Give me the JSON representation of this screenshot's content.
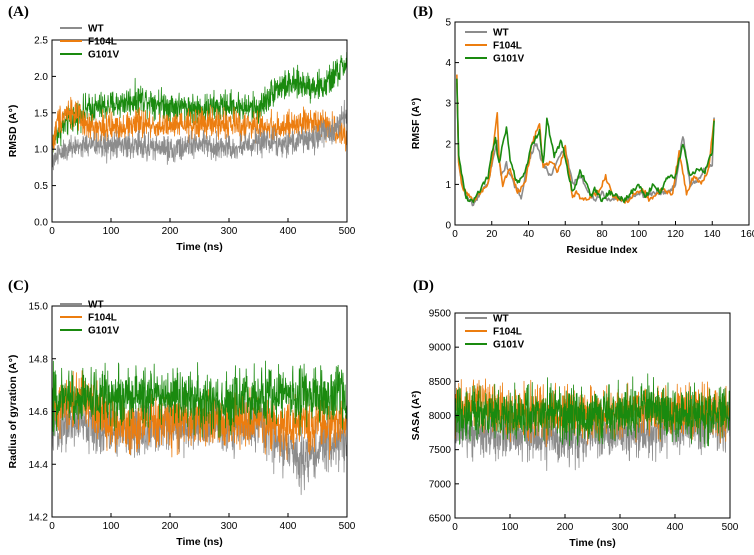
{
  "colors": {
    "WT": "#8c8c8c",
    "F104L": "#ec7d0f",
    "G101V": "#1a8a0f"
  },
  "chart_data": [
    {
      "panel": "(A)",
      "type": "line",
      "xlabel": "Time (ns)",
      "ylabel": "RMSD (A°)",
      "xlim": [
        0,
        500
      ],
      "ylim": [
        0.0,
        2.5
      ],
      "xticks": [
        0,
        100,
        200,
        300,
        400,
        500
      ],
      "yticks": [
        0.0,
        0.5,
        1.0,
        1.5,
        2.0,
        2.5
      ],
      "ytick_decimals": 1,
      "legend": "top-left",
      "legend_order": [
        "WT",
        "F104L",
        "G101V"
      ],
      "draw_order": [
        "G101V",
        "F104L",
        "WT"
      ],
      "series": [
        {
          "name": "WT",
          "noise": 0.09,
          "x": [
            0,
            5,
            20,
            50,
            100,
            150,
            200,
            250,
            300,
            350,
            400,
            450,
            480,
            500
          ],
          "y": [
            0.8,
            0.9,
            1.0,
            1.05,
            1.05,
            1.05,
            1.0,
            1.05,
            1.0,
            1.1,
            1.1,
            1.15,
            1.3,
            1.5
          ]
        },
        {
          "name": "F104L",
          "noise": 0.1,
          "x": [
            0,
            10,
            30,
            60,
            100,
            150,
            200,
            250,
            300,
            350,
            400,
            450,
            470,
            500
          ],
          "y": [
            1.0,
            1.4,
            1.55,
            1.3,
            1.3,
            1.35,
            1.3,
            1.35,
            1.35,
            1.3,
            1.3,
            1.4,
            1.3,
            1.2
          ]
        },
        {
          "name": "G101V",
          "noise": 0.1,
          "x": [
            0,
            5,
            30,
            60,
            100,
            150,
            200,
            250,
            300,
            350,
            380,
            420,
            460,
            500
          ],
          "y": [
            0.9,
            1.2,
            1.4,
            1.55,
            1.6,
            1.7,
            1.6,
            1.55,
            1.6,
            1.55,
            1.85,
            1.9,
            1.85,
            2.2
          ]
        }
      ]
    },
    {
      "panel": "(B)",
      "type": "line",
      "xlabel": "Residue Index",
      "ylabel": "RMSF (A°)",
      "xlim": [
        0,
        160
      ],
      "ylim": [
        0,
        5
      ],
      "xticks": [
        0,
        20,
        40,
        60,
        80,
        100,
        120,
        140,
        160
      ],
      "yticks": [
        0,
        1,
        2,
        3,
        4,
        5
      ],
      "ytick_decimals": 0,
      "legend": "top-center",
      "legend_order": [
        "WT",
        "F104L",
        "G101V"
      ],
      "draw_order": [
        "WT",
        "F104L",
        "G101V"
      ],
      "series": [
        {
          "name": "WT",
          "noise": 0,
          "x": [
            1,
            2,
            4,
            6,
            8,
            10,
            14,
            18,
            20,
            23,
            25,
            28,
            32,
            36,
            40,
            44,
            48,
            52,
            56,
            60,
            64,
            68,
            72,
            76,
            80,
            84,
            88,
            92,
            96,
            100,
            104,
            108,
            112,
            116,
            120,
            124,
            128,
            132,
            136,
            140,
            141
          ],
          "y": [
            3.5,
            1.5,
            1.0,
            0.7,
            0.6,
            0.5,
            0.8,
            1.0,
            1.5,
            2.1,
            1.2,
            1.5,
            1.0,
            0.7,
            1.6,
            2.0,
            1.5,
            1.2,
            1.6,
            1.9,
            1.0,
            1.2,
            0.9,
            0.6,
            0.8,
            0.6,
            0.7,
            0.6,
            0.7,
            0.8,
            0.7,
            0.8,
            0.8,
            0.8,
            1.0,
            2.2,
            1.0,
            1.1,
            1.4,
            1.5,
            2.6
          ]
        },
        {
          "name": "F104L",
          "noise": 0,
          "x": [
            1,
            2,
            4,
            6,
            8,
            10,
            14,
            18,
            20,
            23,
            24,
            26,
            30,
            34,
            38,
            42,
            46,
            48,
            52,
            56,
            60,
            64,
            66,
            70,
            74,
            78,
            82,
            86,
            90,
            94,
            98,
            102,
            106,
            110,
            114,
            118,
            122,
            126,
            130,
            134,
            138,
            141
          ],
          "y": [
            3.7,
            1.5,
            0.9,
            0.8,
            0.7,
            0.6,
            0.8,
            1.0,
            1.5,
            2.8,
            1.6,
            1.0,
            1.4,
            0.8,
            1.0,
            2.0,
            2.5,
            1.4,
            1.6,
            1.3,
            1.9,
            0.7,
            0.8,
            0.6,
            0.7,
            0.8,
            1.2,
            0.7,
            0.6,
            0.6,
            0.8,
            0.9,
            0.6,
            0.8,
            0.9,
            0.7,
            1.8,
            0.8,
            1.2,
            1.0,
            1.4,
            2.6
          ]
        },
        {
          "name": "G101V",
          "noise": 0,
          "x": [
            1,
            2,
            4,
            6,
            8,
            10,
            14,
            18,
            20,
            22,
            24,
            26,
            28,
            30,
            34,
            38,
            42,
            46,
            48,
            50,
            54,
            58,
            60,
            64,
            68,
            72,
            74,
            76,
            80,
            84,
            88,
            92,
            96,
            100,
            104,
            108,
            112,
            116,
            120,
            124,
            128,
            132,
            136,
            140,
            141
          ],
          "y": [
            3.6,
            1.7,
            1.2,
            0.7,
            0.6,
            0.6,
            0.9,
            1.2,
            1.8,
            2.1,
            1.5,
            2.0,
            2.4,
            1.6,
            1.0,
            1.3,
            2.0,
            2.3,
            1.5,
            2.6,
            1.7,
            2.1,
            1.6,
            0.8,
            1.3,
            1.0,
            0.7,
            0.9,
            0.6,
            0.8,
            0.7,
            0.6,
            0.8,
            1.0,
            0.7,
            1.0,
            0.8,
            1.2,
            1.2,
            2.0,
            1.2,
            1.4,
            1.3,
            1.8,
            2.6
          ]
        }
      ]
    },
    {
      "panel": "(C)",
      "type": "line",
      "xlabel": "Time (ns)",
      "ylabel": "Radius of gyration (A°)",
      "xlim": [
        0,
        500
      ],
      "ylim": [
        14.2,
        15.0
      ],
      "xticks": [
        0,
        100,
        200,
        300,
        400,
        500
      ],
      "yticks": [
        14.2,
        14.4,
        14.6,
        14.8,
        15.0
      ],
      "ytick_decimals": 1,
      "legend": "top-left",
      "legend_order": [
        "WT",
        "F104L",
        "G101V"
      ],
      "draw_order": [
        "WT",
        "F104L",
        "G101V"
      ],
      "series": [
        {
          "name": "WT",
          "noise": 0.05,
          "x": [
            0,
            50,
            100,
            150,
            200,
            250,
            300,
            350,
            400,
            430,
            460,
            500
          ],
          "y": [
            14.55,
            14.56,
            14.52,
            14.52,
            14.55,
            14.55,
            14.55,
            14.55,
            14.45,
            14.42,
            14.47,
            14.5
          ]
        },
        {
          "name": "F104L",
          "noise": 0.05,
          "x": [
            0,
            50,
            100,
            150,
            200,
            250,
            300,
            350,
            400,
            450,
            500
          ],
          "y": [
            14.6,
            14.65,
            14.56,
            14.55,
            14.56,
            14.56,
            14.56,
            14.56,
            14.55,
            14.55,
            14.55
          ]
        },
        {
          "name": "G101V",
          "noise": 0.055,
          "x": [
            0,
            50,
            100,
            150,
            200,
            250,
            300,
            350,
            400,
            450,
            500
          ],
          "y": [
            14.64,
            14.66,
            14.66,
            14.67,
            14.65,
            14.64,
            14.64,
            14.66,
            14.67,
            14.66,
            14.65
          ]
        }
      ]
    },
    {
      "panel": "(D)",
      "type": "line",
      "xlabel": "Time (ns)",
      "ylabel": "SASA (A²)",
      "xlim": [
        0,
        500
      ],
      "ylim": [
        6500,
        9500
      ],
      "xticks": [
        0,
        100,
        200,
        300,
        400,
        500
      ],
      "yticks": [
        6500,
        7000,
        7500,
        8000,
        8500,
        9000,
        9500
      ],
      "ytick_decimals": 0,
      "legend": "top-left",
      "legend_order": [
        "WT",
        "F104L",
        "G101V"
      ],
      "draw_order": [
        "WT",
        "F104L",
        "G101V"
      ],
      "series": [
        {
          "name": "WT",
          "noise": 180,
          "x": [
            0,
            50,
            100,
            150,
            200,
            250,
            300,
            350,
            400,
            450,
            500
          ],
          "y": [
            7800,
            7750,
            7700,
            7700,
            7650,
            7700,
            7750,
            7750,
            7800,
            7850,
            7850
          ]
        },
        {
          "name": "F104L",
          "noise": 180,
          "x": [
            0,
            50,
            100,
            150,
            200,
            250,
            300,
            350,
            400,
            450,
            500
          ],
          "y": [
            8100,
            8200,
            8000,
            8050,
            8050,
            8000,
            8050,
            8100,
            8050,
            8100,
            8050
          ]
        },
        {
          "name": "G101V",
          "noise": 190,
          "x": [
            0,
            50,
            100,
            150,
            200,
            250,
            300,
            350,
            400,
            450,
            500
          ],
          "y": [
            8000,
            8050,
            8000,
            8050,
            8000,
            8000,
            8050,
            8100,
            8050,
            8000,
            8050
          ]
        }
      ]
    }
  ]
}
